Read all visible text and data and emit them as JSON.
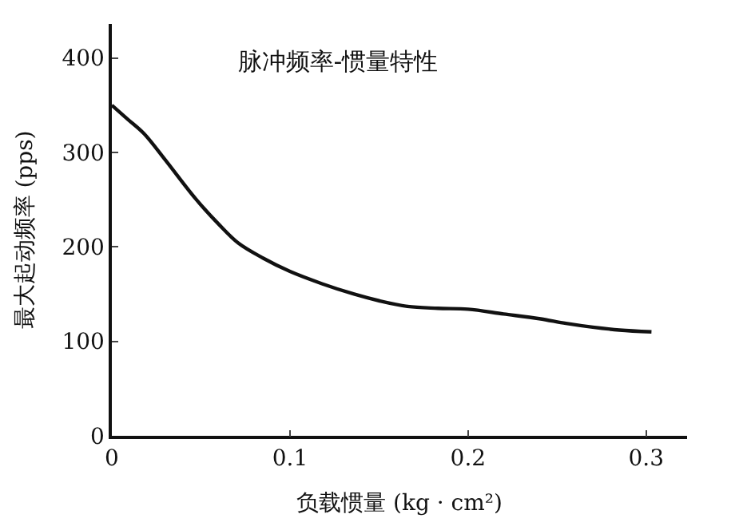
{
  "chart_data": {
    "type": "line",
    "title": "脉冲频率-惯量特性",
    "xlabel": "负载惯量 (kg · cm²)",
    "ylabel": "最大起动频率 (pps)",
    "series": [
      {
        "color": "#111111",
        "x": [
          0,
          0.009,
          0.018,
          0.03,
          0.047,
          0.06,
          0.071,
          0.085,
          0.1,
          0.118,
          0.136,
          0.15,
          0.166,
          0.183,
          0.2,
          0.22,
          0.24,
          0.255,
          0.27,
          0.285,
          0.303
        ],
        "values": [
          350,
          335,
          320,
          292,
          251,
          224,
          204,
          188,
          174,
          161,
          150,
          143,
          137,
          135,
          134,
          129,
          124,
          119,
          115,
          112,
          110
        ]
      }
    ],
    "xlim": [
      0,
      0.323
    ],
    "ylim": [
      0,
      436
    ],
    "xticks": [
      0,
      0.1,
      0.2,
      0.3
    ],
    "yticks": [
      0,
      100,
      200,
      300,
      400
    ],
    "legend": false,
    "marker": "none",
    "line_style": "solid"
  }
}
